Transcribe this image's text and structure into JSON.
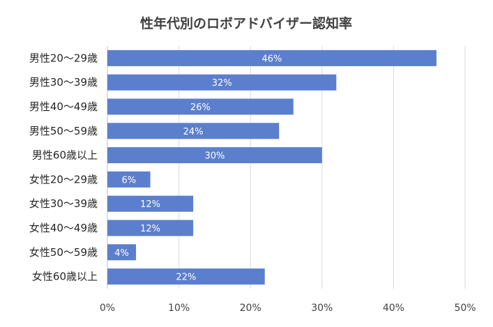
{
  "chart_data": {
    "type": "bar",
    "orientation": "horizontal",
    "title": "性年代別のロボアドバイザー認知率",
    "categories": [
      "男性20～29歳",
      "男性30～39歳",
      "男性40～49歳",
      "男性50～59歳",
      "男性60歳以上",
      "女性20～29歳",
      "女性30～39歳",
      "女性40～49歳",
      "女性50～59歳",
      "女性60歳以上"
    ],
    "values": [
      46,
      32,
      26,
      24,
      30,
      6,
      12,
      12,
      4,
      22
    ],
    "data_labels": [
      "46%",
      "32%",
      "26%",
      "24%",
      "30%",
      "6%",
      "12%",
      "12%",
      "4%",
      "22%"
    ],
    "x_ticks": [
      "0%",
      "10%",
      "20%",
      "30%",
      "40%",
      "50%"
    ],
    "xlim": [
      0,
      50
    ],
    "grid": true,
    "legend": "none",
    "bar_color": "#5b7fcc"
  }
}
